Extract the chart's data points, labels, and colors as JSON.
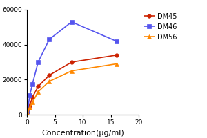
{
  "series": [
    {
      "label": "DM45",
      "color": "#CC2200",
      "marker": "o",
      "x": [
        0.125,
        0.5,
        1,
        2,
        4,
        8,
        16
      ],
      "y": [
        1500,
        5000,
        10000,
        16000,
        22500,
        30000,
        34000
      ]
    },
    {
      "label": "DM46",
      "color": "#5555EE",
      "marker": "s",
      "x": [
        0.125,
        0.5,
        1,
        2,
        4,
        8,
        16
      ],
      "y": [
        2000,
        11000,
        17500,
        30000,
        43000,
        53000,
        42000
      ]
    },
    {
      "label": "DM56",
      "color": "#FF8800",
      "marker": "^",
      "x": [
        0.125,
        0.5,
        1,
        2,
        4,
        8,
        16
      ],
      "y": [
        500,
        4000,
        7000,
        13000,
        19000,
        25000,
        29000
      ]
    }
  ],
  "xlabel": "Concentration(μg/ml)",
  "xlim": [
    0,
    20
  ],
  "ylim": [
    0,
    60000
  ],
  "xticks": [
    0,
    5,
    10,
    15,
    20
  ],
  "yticks": [
    0,
    20000,
    40000,
    60000
  ],
  "ytick_labels": [
    "0",
    "20000",
    "40000",
    "60000"
  ],
  "legend_fontsize": 7,
  "axis_label_fontsize": 8,
  "tick_fontsize": 6.5,
  "linewidth": 1.2,
  "markersize": 4,
  "background_color": "#ffffff"
}
